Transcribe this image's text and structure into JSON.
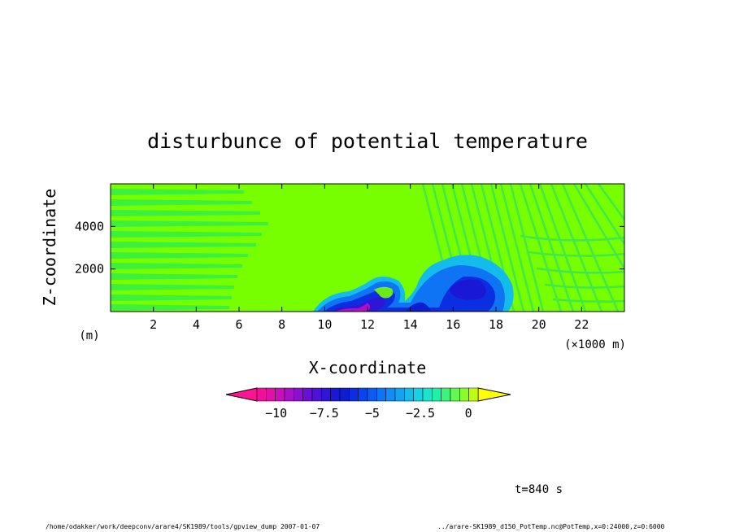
{
  "chart_data": {
    "type": "heatmap",
    "title": "disturbunce of potential temperature",
    "xlabel": "X-coordinate",
    "ylabel": "Z-coordinate",
    "x_unit": "(×1000 m)",
    "y_unit": "(m)",
    "xlim": [
      0,
      24000
    ],
    "ylim": [
      0,
      6000
    ],
    "x_ticks": [
      2,
      4,
      6,
      8,
      10,
      12,
      14,
      16,
      18,
      20,
      22
    ],
    "y_ticks": [
      2000,
      4000
    ],
    "colorbar": {
      "ticks": [
        "−10",
        "−7.5",
        "−5",
        "−2.5",
        "0"
      ],
      "tick_values": [
        -10,
        -7.5,
        -5,
        -2.5,
        0
      ],
      "min": -11,
      "max": 0.5,
      "step": 0.5,
      "low_color": "#ff1493",
      "high_color": "#ffff00",
      "colors": [
        "#f0109a",
        "#e010a8",
        "#c810b8",
        "#aa10c8",
        "#8c10d0",
        "#6a10d4",
        "#4c12d8",
        "#3014d8",
        "#1a18d4",
        "#0c1ed0",
        "#0a2ee0",
        "#0a44ee",
        "#0c5cf4",
        "#0e74f4",
        "#108cf4",
        "#12a4f0",
        "#14bcec",
        "#16d2e4",
        "#1ae4cc",
        "#20f0a8",
        "#3cf47c",
        "#64f850",
        "#8cfc28",
        "#c0fc10"
      ]
    },
    "background_color": "#77ff00",
    "notes": {
      "cold_pool_x_km": [
        9.5,
        15.5
      ],
      "cold_bubble_center_km": [
        16.5,
        1.2
      ]
    }
  },
  "time_label": "t=840 s",
  "footer": {
    "left": "/home/odakker/work/deepconv/arare4/SK1989/tools/gpview_dump  2007-01-07",
    "right": "../arare-SK1989_d150_PotTemp.nc@PotTemp,x=0:24000,z=0:6000"
  }
}
